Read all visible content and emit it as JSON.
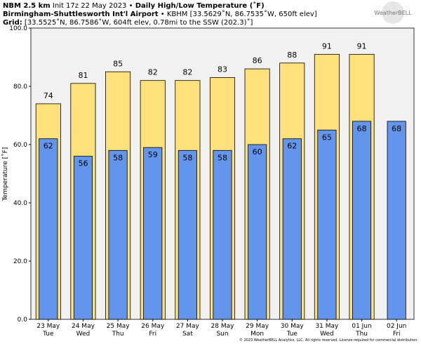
{
  "chart_data": {
    "type": "bar",
    "header": {
      "model": "NBM 2.5 km",
      "init": "Init 17z 22 May 2023 •",
      "title": "Daily High/Low Temperature (˚F)",
      "station": "Birmingham-Shuttlesworth Int'l Airport",
      "station_info": "• KBHM [33.5629˚N, 86.7535˚W, 650ft elev]",
      "grid_label": "Grid:",
      "grid_info": "[33.5525˚N, 86.7586˚W, 604ft elev, 0.78mi to the SSW (202.3)˚]"
    },
    "logo": "WeatherBELL",
    "footer": "© 2023 WeatherBELL Analytics, LLC. All rights reserved. License required for commercial distribution.",
    "ylabel": "Temperature [˚F]",
    "categories": [
      "23 May",
      "24 May",
      "25 May",
      "26 May",
      "27 May",
      "28 May",
      "29 May",
      "30 May",
      "31 May",
      "01 Jun",
      "02 Jun"
    ],
    "weekdays": [
      "Tue",
      "Wed",
      "Thu",
      "Fri",
      "Sat",
      "Sun",
      "Mon",
      "Tue",
      "Wed",
      "Thu",
      "Fri"
    ],
    "series": [
      {
        "color": "#ffe17c",
        "values": [
          74,
          81,
          85,
          82,
          82,
          83,
          86,
          88,
          91,
          91,
          null
        ]
      },
      {
        "color": "#6495ed",
        "values": [
          62,
          56,
          58,
          59,
          58,
          58,
          60,
          62,
          65,
          68,
          68
        ]
      }
    ],
    "ylim": [
      0,
      100
    ],
    "yticks": [
      {
        "value": 0,
        "label": "0.0"
      },
      {
        "value": 20,
        "label": "20.0"
      },
      {
        "value": 40,
        "label": "40.0"
      },
      {
        "value": 60,
        "label": "60.0"
      },
      {
        "value": 80,
        "label": "80.0"
      },
      {
        "value": 100,
        "label": "100.0"
      }
    ]
  }
}
